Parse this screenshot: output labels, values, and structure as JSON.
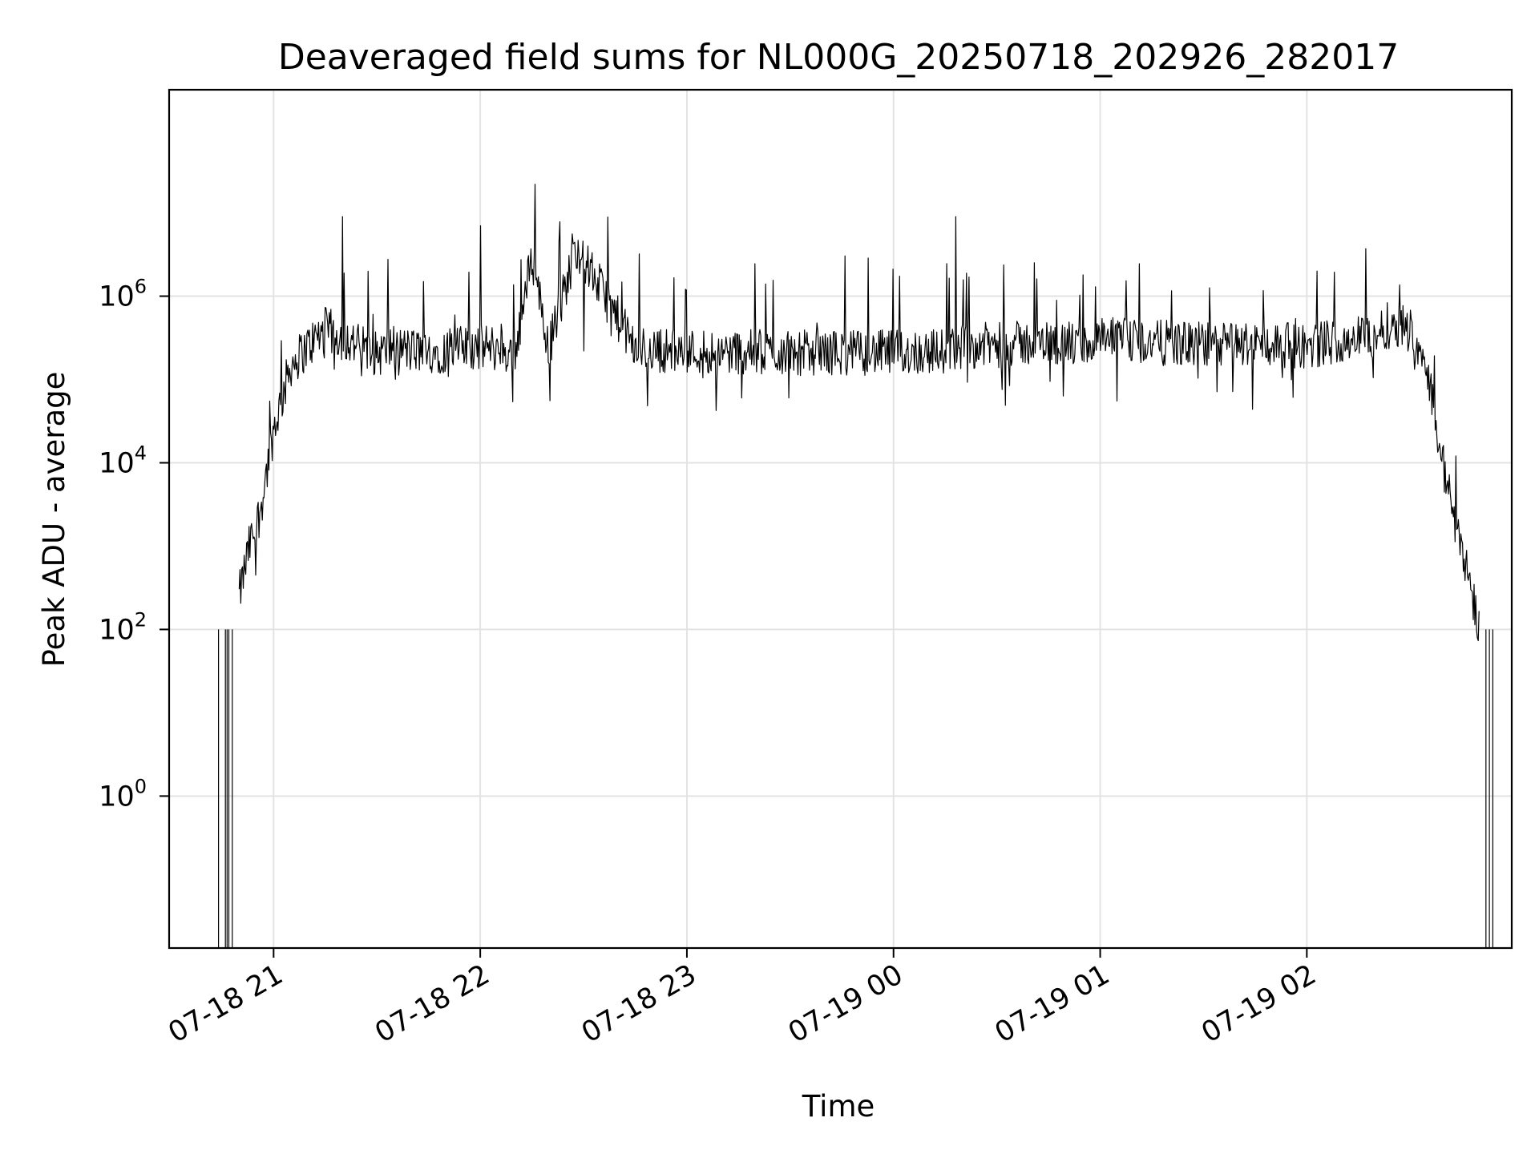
{
  "chart_data": {
    "type": "line",
    "title": "Deaveraged field sums for NL000G_20250718_202926_282017",
    "xlabel": "Time",
    "ylabel": "Peak ADU - average",
    "yscale": "log",
    "ylim": [
      0.015,
      300000000
    ],
    "xlim": [
      "07-18 20:29:40",
      "07-19 02:59:30"
    ],
    "grid": true,
    "line_color": "#000000",
    "x_ticks": [
      {
        "time": "07-18 21:00",
        "label": "07-18 21"
      },
      {
        "time": "07-18 22:00",
        "label": "07-18 22"
      },
      {
        "time": "07-18 23:00",
        "label": "07-18 23"
      },
      {
        "time": "07-19 00:00",
        "label": "07-19 00"
      },
      {
        "time": "07-19 01:00",
        "label": "07-19 01"
      },
      {
        "time": "07-19 02:00",
        "label": "07-19 02"
      }
    ],
    "y_ticks": [
      {
        "value": 1,
        "base": "10",
        "exp": "0"
      },
      {
        "value": 100,
        "base": "10",
        "exp": "2"
      },
      {
        "value": 10000,
        "base": "10",
        "exp": "4"
      },
      {
        "value": 1000000,
        "base": "10",
        "exp": "6"
      }
    ],
    "series": [
      {
        "x": [
          "07-18 20:50",
          "07-18 20:53",
          "07-18 20:56",
          "07-18 21:00",
          "07-18 21:05",
          "07-18 21:10",
          "07-18 21:15",
          "07-18 21:18",
          "07-18 21:20",
          "07-18 21:25",
          "07-18 21:30",
          "07-18 21:35",
          "07-18 21:40",
          "07-18 21:50",
          "07-18 21:58",
          "07-18 22:00",
          "07-18 22:02",
          "07-18 22:10",
          "07-18 22:15",
          "07-18 22:16",
          "07-18 22:20",
          "07-18 22:28",
          "07-18 22:30",
          "07-18 22:45",
          "07-18 23:00",
          "07-18 23:30",
          "07-19 00:00",
          "07-19 00:15",
          "07-19 00:18",
          "07-19 00:20",
          "07-19 00:45",
          "07-19 00:55",
          "07-19 00:56",
          "07-19 01:00",
          "07-19 01:30",
          "07-19 01:45",
          "07-19 02:00",
          "07-19 02:03",
          "07-19 02:10",
          "07-19 02:20",
          "07-19 02:25",
          "07-19 02:30",
          "07-19 02:35",
          "07-19 02:38",
          "07-19 02:42",
          "07-19 02:46",
          "07-19 02:50"
        ],
        "y": [
          250,
          1000,
          2500,
          25000,
          150000,
          250000,
          400000,
          350000,
          9000000,
          250000,
          200000,
          250000,
          220000,
          220000,
          250000,
          7000000,
          250000,
          200000,
          3000000,
          22000000,
          250000,
          4000000,
          220000,
          230000,
          220000,
          210000,
          210000,
          220000,
          9000000,
          250000,
          280000,
          1800000,
          250000,
          300000,
          260000,
          270000,
          250000,
          2000000,
          300000,
          350000,
          500000,
          400000,
          150000,
          20000,
          3000,
          700,
          100
        ],
        "noise": "dense high-frequency fluctuation approx. 0.5x-2x around the trend"
      }
    ]
  }
}
